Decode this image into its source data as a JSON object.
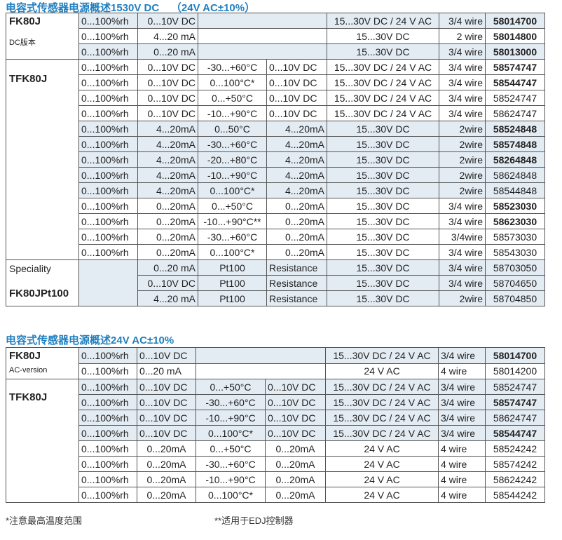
{
  "section1": {
    "title": "电容式传感器电源概述1530V DC    （24V AC±10%）",
    "groups": [
      {
        "name": "FK80J",
        "subtitle": "DC版本",
        "rows": [
          {
            "cells": [
              "0...100%rh",
              "0...10V DC",
              "",
              "",
              "15...30V DC / 24 V AC",
              "3/4 wire",
              "58014700"
            ],
            "shaded": true,
            "bold": true,
            "span": true
          },
          {
            "cells": [
              "0...100%rh",
              "4...20 mA",
              "",
              "",
              "15...30V DC",
              "2 wire",
              "58014800"
            ],
            "shaded": false,
            "bold": true,
            "span": true
          },
          {
            "cells": [
              "0...100%rh",
              "0...20 mA",
              "",
              "",
              "15...30V DC",
              "3/4 wire",
              "58013000"
            ],
            "shaded": true,
            "bold": true,
            "span": true
          }
        ]
      },
      {
        "name": "TFK80J",
        "subtitle": "",
        "rows": [
          {
            "cells": [
              "0...100%rh",
              "0...10V DC",
              "-30...+60°C",
              "0...10V DC",
              "15...30V DC / 24 V AC",
              "3/4 wire",
              "58574747"
            ],
            "shaded": false,
            "bold": true
          },
          {
            "cells": [
              "0...100%rh",
              "0...10V DC",
              "0...100°C*",
              "0...10V DC",
              "15...30V DC / 24 V AC",
              "3/4 wire",
              "58544747"
            ],
            "shaded": false,
            "bold": true
          },
          {
            "cells": [
              "0...100%rh",
              "0...10V DC",
              "0...+50°C",
              "0...10V DC",
              "15...30V DC / 24 V AC",
              "3/4 wire",
              "58524747"
            ],
            "shaded": false,
            "bold": false
          },
          {
            "cells": [
              "0...100%rh",
              "0...10V DC",
              "-10...+90°C",
              "0...10V DC",
              "15...30V DC / 24 V AC",
              "3/4 wire",
              "58624747"
            ],
            "shaded": false,
            "bold": false
          },
          {
            "cells": [
              "0...100%rh",
              "4...20mA",
              "0...50°C",
              "4...20mA",
              "15...30V DC",
              "2wire",
              "58524848"
            ],
            "shaded": true,
            "bold": true
          },
          {
            "cells": [
              "0...100%rh",
              "4...20mA",
              "-30...+60°C",
              "4...20mA",
              "15...30V DC",
              "2wire",
              "58574848"
            ],
            "shaded": true,
            "bold": true
          },
          {
            "cells": [
              "0...100%rh",
              "4...20mA",
              "-20...+80°C",
              "4...20mA",
              "15...30V DC",
              "2wire",
              "58264848"
            ],
            "shaded": true,
            "bold": true
          },
          {
            "cells": [
              "0...100%rh",
              "4...20mA",
              "-10...+90°C",
              "4...20mA",
              "15...30V DC",
              "2wire",
              "58624848"
            ],
            "shaded": true,
            "bold": false
          },
          {
            "cells": [
              "0...100%rh",
              "4...20mA",
              "0...100°C*",
              "4...20mA",
              "15...30V DC",
              "2wire",
              "58544848"
            ],
            "shaded": true,
            "bold": false
          },
          {
            "cells": [
              "0...100%rh",
              "0...20mA",
              "0...+50°C",
              "0...20mA",
              "15...30V DC",
              "3/4 wire",
              "58523030"
            ],
            "shaded": false,
            "bold": true
          },
          {
            "cells": [
              "0...100%rh",
              "0...20mA",
              "-10...+90°C**",
              "0...20mA",
              "15...30V DC",
              "3/4 wire",
              "58623030"
            ],
            "shaded": false,
            "bold": true
          },
          {
            "cells": [
              "0...100%rh",
              "0...20mA",
              "-30...+60°C",
              "0...20mA",
              "15...30V DC",
              "3/4wire",
              "58573030"
            ],
            "shaded": false,
            "bold": false
          },
          {
            "cells": [
              "0...100%rh",
              "0...20mA",
              "0...100°C*",
              "0...20mA",
              "15...30V DC",
              "3/4 wire",
              "58543030"
            ],
            "shaded": false,
            "bold": false
          }
        ]
      },
      {
        "name": "FK80JPt100",
        "pre": "Speciality",
        "special": true,
        "rows": [
          {
            "cells": [
              "",
              "0...20 mA",
              "Pt100",
              "Resistance",
              "15...30V DC",
              "3/4 wire",
              "58703050"
            ],
            "shaded": true,
            "bold": false
          },
          {
            "cells": [
              "",
              "0...10V DC",
              "Pt100",
              "Resistance",
              "15...30V DC",
              "3/4 wire",
              "58704650"
            ],
            "shaded": true,
            "bold": false
          },
          {
            "cells": [
              "",
              "4...20 mA",
              "Pt100",
              "Resistance",
              "15...30V DC",
              "2wire",
              "58704850"
            ],
            "shaded": true,
            "bold": false
          }
        ]
      }
    ]
  },
  "section2": {
    "title": "电容式传感器电源概述24V AC±10%",
    "groups": [
      {
        "name": "FK80J",
        "subtitle": "AC-version",
        "rows": [
          {
            "cells": [
              "0...100%rh",
              "0...10V DC",
              "",
              "",
              "15...30V DC / 24 V AC",
              "3/4 wire",
              "58014700"
            ],
            "shaded": true,
            "bold": true,
            "span": true
          },
          {
            "cells": [
              "0...100%rh",
              "0...20 mA",
              "",
              "",
              "24 V AC",
              "4 wire",
              "58014200"
            ],
            "shaded": false,
            "bold": false,
            "span": true
          }
        ]
      },
      {
        "name": "TFK80J",
        "subtitle": "",
        "rows": [
          {
            "cells": [
              "0...100%rh",
              "0...10V DC",
              "0...+50°C",
              "0...10V DC",
              "15...30V DC / 24 V AC",
              "3/4 wire",
              "58524747"
            ],
            "shaded": true,
            "bold": false
          },
          {
            "cells": [
              "0...100%rh",
              "0...10V DC",
              "-30...+60°C",
              "0...10V DC",
              "15...30V DC / 24 V AC",
              "3/4 wire",
              "58574747"
            ],
            "shaded": true,
            "bold": true
          },
          {
            "cells": [
              "0...100%rh",
              "0...10V DC",
              "-10...+90°C",
              "0...10V DC",
              "15...30V DC / 24 V AC",
              "3/4 wire",
              "58624747"
            ],
            "shaded": true,
            "bold": false
          },
          {
            "cells": [
              "0...100%rh",
              "0...10V DC",
              "0...100°C*",
              "0...10V DC",
              "15...30V DC / 24 V AC",
              "3/4 wire",
              "58544747"
            ],
            "shaded": true,
            "bold": true
          },
          {
            "cells": [
              "0...100%rh",
              "0...20mA",
              "0...+50°C",
              "0...20mA",
              "24 V AC",
              "4 wire",
              "58524242"
            ],
            "shaded": false,
            "bold": false
          },
          {
            "cells": [
              "0...100%rh",
              "0...20mA",
              "-30...+60°C",
              "0...20mA",
              "24 V AC",
              "4 wire",
              "58574242"
            ],
            "shaded": false,
            "bold": false
          },
          {
            "cells": [
              "0...100%rh",
              "0...20mA",
              "-10...+90°C",
              "0...20mA",
              "24 V AC",
              "4 wire",
              "58624242"
            ],
            "shaded": false,
            "bold": false
          },
          {
            "cells": [
              "0...100%rh",
              "0...20mA",
              "0...100°C*",
              "0...20mA",
              "24 V AC",
              "4 wire",
              "58544242"
            ],
            "shaded": false,
            "bold": false
          }
        ]
      }
    ]
  },
  "footnotes": {
    "note1": "*注意最高温度范围",
    "note2": "**适用于EDJ控制器"
  }
}
